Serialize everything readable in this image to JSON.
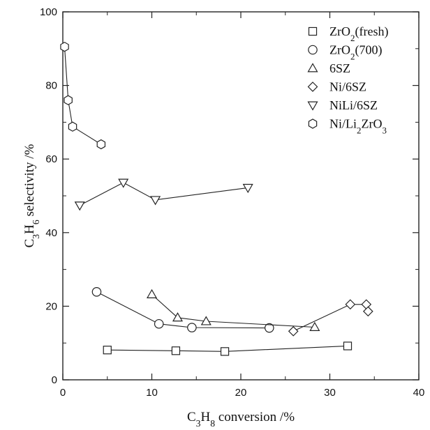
{
  "chart_data": {
    "type": "scatter",
    "xlabel": "C3H8 conversion /%",
    "ylabel": "C3H6 selectivity /%",
    "xlim": [
      0,
      40
    ],
    "ylim": [
      0,
      100
    ],
    "x_ticks": [
      "0",
      "10",
      "20",
      "30",
      "40"
    ],
    "y_ticks": [
      "0",
      "20",
      "40",
      "60",
      "80",
      "100"
    ],
    "grid": false,
    "legend_position": "top-right",
    "series": [
      {
        "name": "ZrO2(fresh)",
        "marker": "square",
        "connected": true,
        "x": [
          5.0,
          12.7,
          18.2,
          32.0
        ],
        "y": [
          8.1,
          7.9,
          7.7,
          9.2
        ]
      },
      {
        "name": "ZrO2(700)",
        "marker": "circle",
        "connected": true,
        "x": [
          3.8,
          10.8,
          14.5,
          23.2
        ],
        "y": [
          23.9,
          15.2,
          14.2,
          14.1
        ]
      },
      {
        "name": "6SZ",
        "marker": "triangle-up",
        "connected": true,
        "x": [
          10.0,
          12.9,
          16.1,
          28.3
        ],
        "y": [
          23.2,
          16.9,
          15.9,
          14.3
        ]
      },
      {
        "name": "Ni/6SZ",
        "marker": "diamond",
        "connected": true,
        "x": [
          25.9,
          32.3,
          34.1,
          34.3
        ],
        "y": [
          13.2,
          20.5,
          20.5,
          18.6
        ]
      },
      {
        "name": "NiLi/6SZ",
        "marker": "triangle-down",
        "connected": true,
        "x": [
          1.9,
          6.8,
          10.4,
          20.8
        ],
        "y": [
          47.4,
          53.6,
          48.9,
          52.2
        ]
      },
      {
        "name": "Ni/Li2ZrO3",
        "marker": "hexagon",
        "connected": true,
        "x": [
          0.2,
          0.6,
          1.1,
          4.3
        ],
        "y": [
          90.5,
          76.0,
          68.8,
          64.0
        ]
      }
    ]
  }
}
